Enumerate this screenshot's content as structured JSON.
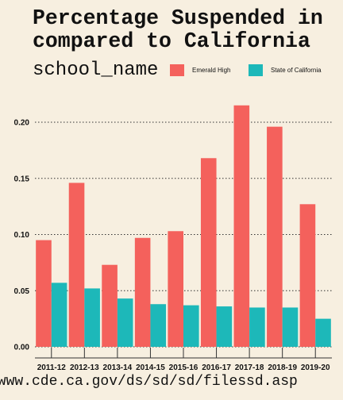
{
  "title": [
    "Percentage Suspended in",
    "compared to California"
  ],
  "caption": "/www.cde.ca.gov/ds/sd/sd/filessd.asp",
  "colors": {
    "background": "#f7efe0",
    "emerald": "#f4615c",
    "california": "#1db8b9",
    "grid": "#333333"
  },
  "chart_data": {
    "type": "bar",
    "legend_title": "school_name",
    "legend_position": "top",
    "categories": [
      "2011-12",
      "2012-13",
      "2013-14",
      "2014-15",
      "2015-16",
      "2016-17",
      "2017-18",
      "2018-19",
      "2019-20"
    ],
    "series": [
      {
        "name": "Emerald High",
        "color": "#f4615c",
        "values": [
          0.095,
          0.146,
          0.073,
          0.097,
          0.103,
          0.168,
          0.215,
          0.196,
          0.127
        ]
      },
      {
        "name": "State of California",
        "color": "#1db8b9",
        "values": [
          0.057,
          0.052,
          0.043,
          0.038,
          0.037,
          0.036,
          0.035,
          0.035,
          0.025
        ]
      }
    ],
    "yticks": [
      "0.00",
      "0.05",
      "0.10",
      "0.15",
      "0.20"
    ],
    "ylim": [
      0,
      0.22
    ],
    "grid": "horizontal dotted"
  }
}
